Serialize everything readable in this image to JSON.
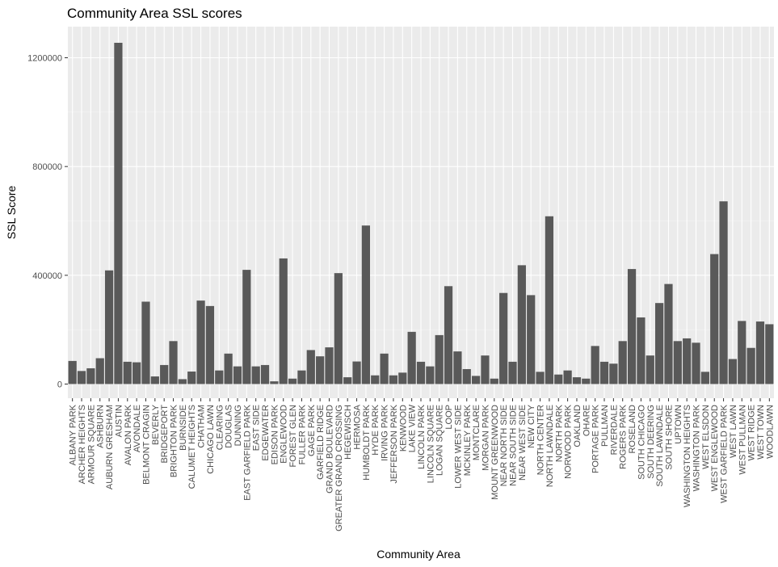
{
  "chart_data": {
    "type": "bar",
    "title": "Community Area SSL scores",
    "xlabel": "Community Area",
    "ylabel": "SSL Score",
    "ylim": [
      -60000,
      1300000
    ],
    "yticks": [
      0,
      400000,
      800000,
      1200000
    ],
    "ytick_labels": [
      "0",
      "400000",
      "800000",
      "1200000"
    ],
    "grid": true,
    "bar_color": "#595959",
    "panel_color": "#ebebeb",
    "categories": [
      "ALBANY PARK",
      "ARCHER HEIGHTS",
      "ARMOUR SQUARE",
      "ASHBURN",
      "AUBURN GRESHAM",
      "AUSTIN",
      "AVALON PARK",
      "AVONDALE",
      "BELMONT CRAGIN",
      "BEVERLY",
      "BRIDGEPORT",
      "BRIGHTON PARK",
      "BURNSIDE",
      "CALUMET HEIGHTS",
      "CHATHAM",
      "CHICAGO LAWN",
      "CLEARING",
      "DOUGLAS",
      "DUNNING",
      "EAST GARFIELD PARK",
      "EAST SIDE",
      "EDGEWATER",
      "EDISON PARK",
      "ENGLEWOOD",
      "FOREST GLEN",
      "FULLER PARK",
      "GAGE PARK",
      "GARFIELD RIDGE",
      "GRAND BOULEVARD",
      "GREATER GRAND CROSSING",
      "HEGEWISCH",
      "HERMOSA",
      "HUMBOLDT PARK",
      "HYDE PARK",
      "IRVING PARK",
      "JEFFERSON PARK",
      "KENWOOD",
      "LAKE VIEW",
      "LINCOLN PARK",
      "LINCOLN SQUARE",
      "LOGAN SQUARE",
      "LOOP",
      "LOWER WEST SIDE",
      "MCKINLEY PARK",
      "MONTCLARE",
      "MORGAN PARK",
      "MOUNT GREENWOOD",
      "NEAR NORTH SIDE",
      "NEAR SOUTH SIDE",
      "NEAR WEST SIDE",
      "NEW CITY",
      "NORTH CENTER",
      "NORTH LAWNDALE",
      "NORTH PARK",
      "NORWOOD PARK",
      "OAKLAND",
      "OHARE",
      "PORTAGE PARK",
      "PULLMAN",
      "RIVERDALE",
      "ROGERS PARK",
      "ROSELAND",
      "SOUTH CHICAGO",
      "SOUTH DEERING",
      "SOUTH LAWNDALE",
      "SOUTH SHORE",
      "UPTOWN",
      "WASHINGTON HEIGHTS",
      "WASHINGTON PARK",
      "WEST ELSDON",
      "WEST ENGLEWOOD",
      "WEST GARFIELD PARK",
      "WEST LAWN",
      "WEST PULLMAN",
      "WEST RIDGE",
      "WEST TOWN",
      "WOODLAWN"
    ],
    "values": [
      85000,
      48000,
      58000,
      95000,
      418000,
      1255000,
      82000,
      80000,
      303000,
      28000,
      70000,
      158000,
      18000,
      46000,
      307000,
      287000,
      50000,
      112000,
      65000,
      420000,
      65000,
      70000,
      10000,
      462000,
      20000,
      50000,
      125000,
      102000,
      135000,
      408000,
      25000,
      83000,
      583000,
      32000,
      112000,
      32000,
      42000,
      192000,
      82000,
      65000,
      180000,
      360000,
      120000,
      55000,
      30000,
      105000,
      20000,
      335000,
      82000,
      437000,
      327000,
      45000,
      617000,
      35000,
      50000,
      25000,
      20000,
      140000,
      82000,
      75000,
      158000,
      423000,
      245000,
      105000,
      298000,
      368000,
      158000,
      168000,
      152000,
      45000,
      478000,
      672000,
      92000,
      232000,
      133000,
      230000,
      220000
    ]
  }
}
